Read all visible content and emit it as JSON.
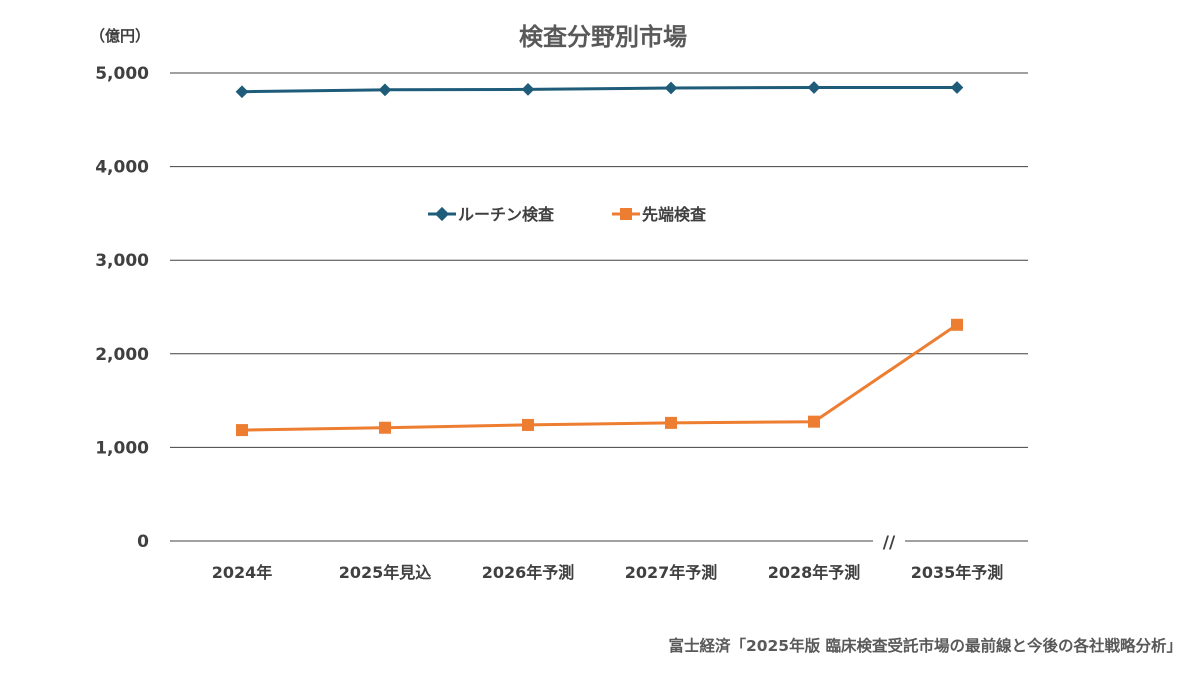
{
  "chart_data": {
    "type": "line",
    "title": "検査分野別市場",
    "unit_label": "（億円）",
    "categories": [
      "2024年",
      "2025年見込",
      "2026年予測",
      "2027年予測",
      "2028年予測",
      "2035年予測"
    ],
    "ylim": [
      0,
      5000
    ],
    "yticks": [
      "0",
      "1,000",
      "2,000",
      "3,000",
      "4,000",
      "5,000"
    ],
    "ytick_values": [
      0,
      1000,
      2000,
      3000,
      4000,
      5000
    ],
    "grid": true,
    "legend_position": "center",
    "axis_break_label": "//",
    "series": [
      {
        "name": "ルーチン検査",
        "values": [
          4800,
          4820,
          4825,
          4840,
          4845,
          4845
        ],
        "color": "#1f5c7a",
        "marker": "diamond"
      },
      {
        "name": "先端検査",
        "values": [
          1185,
          1210,
          1240,
          1262,
          1275,
          2310
        ],
        "color": "#ed7d31",
        "marker": "square"
      }
    ]
  },
  "source": "富士経済「2025年版 臨床検査受託市場の最前線と今後の各社戦略分析」"
}
